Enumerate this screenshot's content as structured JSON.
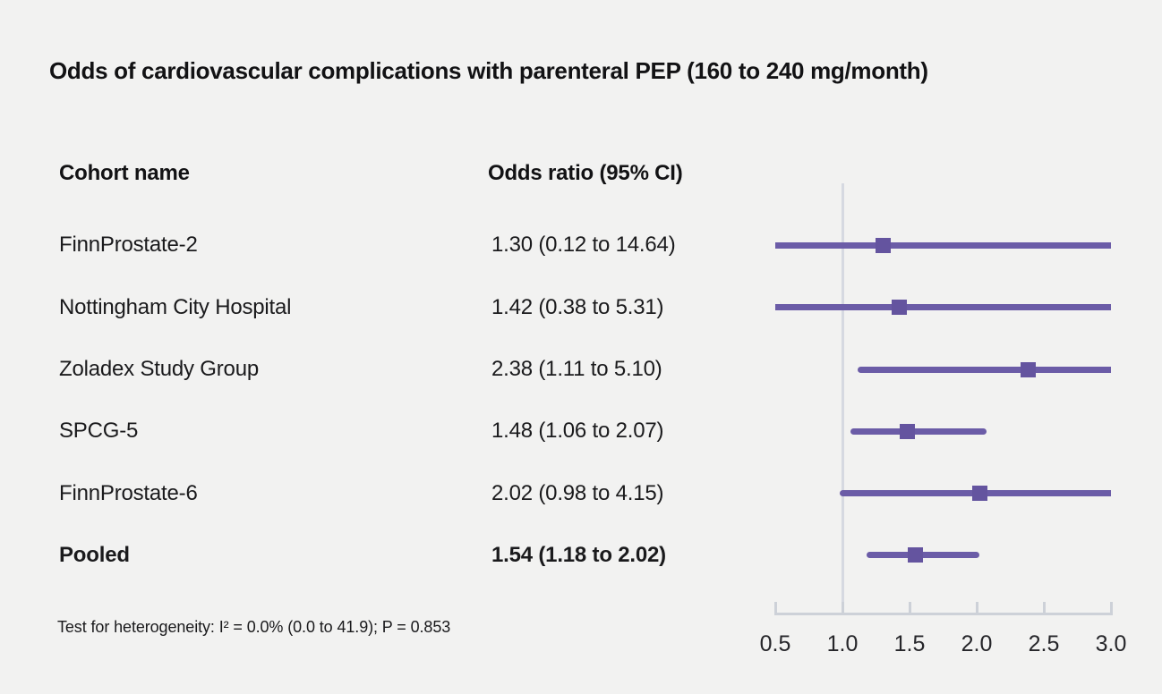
{
  "chart_data": {
    "type": "forest",
    "title": "Odds of cardiovascular complications with parenteral PEP (160 to 240 mg/month)",
    "columns": [
      "Cohort name",
      "Odds ratio (95% CI)"
    ],
    "rows": [
      {
        "name": "FinnProstate-2",
        "display": "1.30 (0.12 to 14.64)",
        "or": 1.3,
        "ci_low": 0.12,
        "ci_high": 14.64,
        "bold": false
      },
      {
        "name": "Nottingham City Hospital",
        "display": "1.42 (0.38 to 5.31)",
        "or": 1.42,
        "ci_low": 0.38,
        "ci_high": 5.31,
        "bold": false
      },
      {
        "name": "Zoladex Study Group",
        "display": "2.38 (1.11 to 5.10)",
        "or": 2.38,
        "ci_low": 1.11,
        "ci_high": 5.1,
        "bold": false
      },
      {
        "name": "SPCG-5",
        "display": "1.48 (1.06 to 2.07)",
        "or": 1.48,
        "ci_low": 1.06,
        "ci_high": 2.07,
        "bold": false
      },
      {
        "name": "FinnProstate-6",
        "display": "2.02 (0.98 to 4.15)",
        "or": 2.02,
        "ci_low": 0.98,
        "ci_high": 4.15,
        "bold": false
      },
      {
        "name": "Pooled",
        "display": "1.54 (1.18 to 2.02)",
        "or": 1.54,
        "ci_low": 1.18,
        "ci_high": 2.02,
        "bold": true
      }
    ],
    "x_axis": {
      "scale": "linear",
      "range": [
        0.5,
        3.0
      ],
      "tick_values": [
        0.5,
        1.0,
        1.5,
        2.0,
        2.5,
        3.0
      ],
      "tick_labels": [
        "0.5",
        "1.0",
        "1.5",
        "2.0",
        "2.5",
        "3.0"
      ],
      "reference_line": 1.0
    },
    "footnote": "Test for heterogeneity: I² = 0.0% (0.0 to 41.9); P = 0.853",
    "legend_position": "none",
    "grid": false,
    "colors": {
      "ci_line": "#6B5CA7",
      "marker": "#64549F",
      "reference_line": "#D6D9E1",
      "axis": "#CDD1D8",
      "background": "#F2F2F1",
      "text": "#1A1A1C"
    }
  }
}
